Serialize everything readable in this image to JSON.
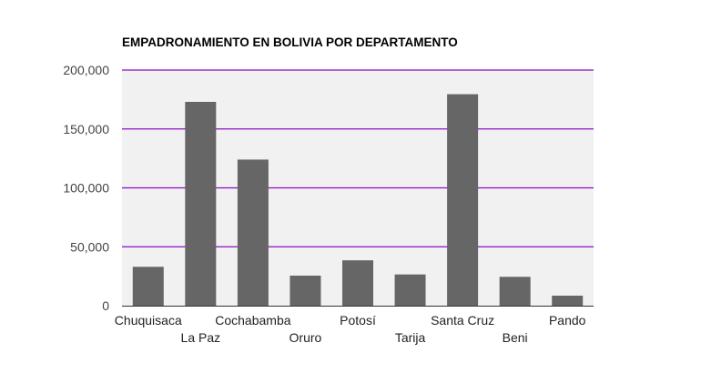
{
  "chart_data": {
    "type": "bar",
    "title": "EMPADRONAMIENTO EN BOLIVIA POR DEPARTAMENTO",
    "xlabel": "",
    "ylabel": "",
    "categories": [
      "Chuquisaca",
      "La Paz",
      "Cochabamba",
      "Oruro",
      "Potosí",
      "Tarija",
      "Santa Cruz",
      "Beni",
      "Pando"
    ],
    "values": [
      33000,
      173000,
      124000,
      25500,
      38500,
      26500,
      179500,
      24500,
      8500
    ],
    "ylim": [
      0,
      200000
    ],
    "yticks": [
      0,
      50000,
      100000,
      150000,
      200000
    ],
    "ytick_labels": [
      "0",
      "50,000",
      "100,000",
      "150,000",
      "200,000"
    ],
    "grid": true,
    "legend": "none",
    "colors": {
      "bar": "#666666",
      "gridline": "#8a0cc4",
      "plot_background": "#f2f1f2",
      "axis": "#333333"
    }
  }
}
